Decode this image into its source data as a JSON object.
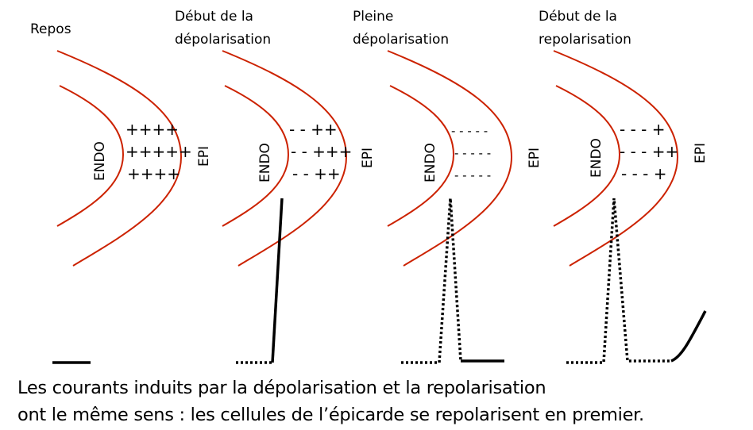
{
  "colors": {
    "wall": "#cc2200",
    "trace": "#000000"
  },
  "panels": [
    {
      "title": [
        "Repos"
      ],
      "endo": "ENDO",
      "epi": "EPI",
      "signs": [
        "++++",
        "+++++",
        "++++"
      ],
      "trace": "flat"
    },
    {
      "title": [
        "Début de la",
        "dépolarisation"
      ],
      "endo": "ENDO",
      "epi": "EPI",
      "signs": [
        "- - ++",
        "- - +++",
        "- - ++"
      ],
      "trace": "rising"
    },
    {
      "title": [
        "Pleine",
        "dépolarisation"
      ],
      "endo": "ENDO",
      "epi": "EPI",
      "signs": [
        "- - - - -",
        "- - - - -",
        "- - - - -"
      ],
      "trace": "spike-then-flat"
    },
    {
      "title": [
        "Début de la",
        "repolarisation"
      ],
      "endo": "ENDO",
      "epi": "EPI",
      "signs": [
        "- - - +",
        "- - - ++",
        "- - - +"
      ],
      "trace": "spike-then-rising"
    }
  ],
  "caption": [
    "Les courants induits par la dépolarisation et la repolarisation",
    "ont le même sens : les cellules de l’épicarde se repolarisent en premier."
  ]
}
